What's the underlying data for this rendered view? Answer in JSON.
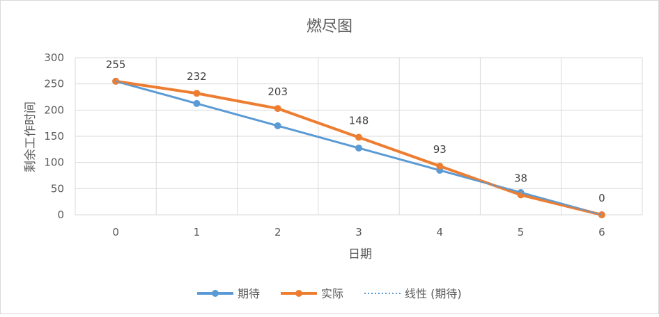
{
  "chart_data": {
    "type": "line",
    "title": "燃尽图",
    "xlabel": "日期",
    "ylabel": "剩余工作时间",
    "categories": [
      "0",
      "1",
      "2",
      "3",
      "4",
      "5",
      "6"
    ],
    "ylim": [
      0,
      300
    ],
    "yticks": [
      "0",
      "50",
      "100",
      "150",
      "200",
      "250",
      "300"
    ],
    "grid": true,
    "legend_position": "bottom",
    "series": [
      {
        "name": "期待",
        "values": [
          255,
          212.5,
          170,
          127.5,
          85,
          42.5,
          0
        ],
        "color": "#5b9bd5",
        "style": "line-marker"
      },
      {
        "name": "实际",
        "values": [
          255,
          232,
          203,
          148,
          93,
          38,
          0
        ],
        "color": "#ed7d31",
        "style": "line-marker"
      },
      {
        "name": "线性 (期待)",
        "values": [
          255,
          212.5,
          170,
          127.5,
          85,
          42.5,
          0
        ],
        "color": "#5b9bd5",
        "style": "dotted-trendline"
      }
    ],
    "data_labels": [
      "255",
      "232",
      "203",
      "148",
      "93",
      "38",
      "0"
    ]
  }
}
